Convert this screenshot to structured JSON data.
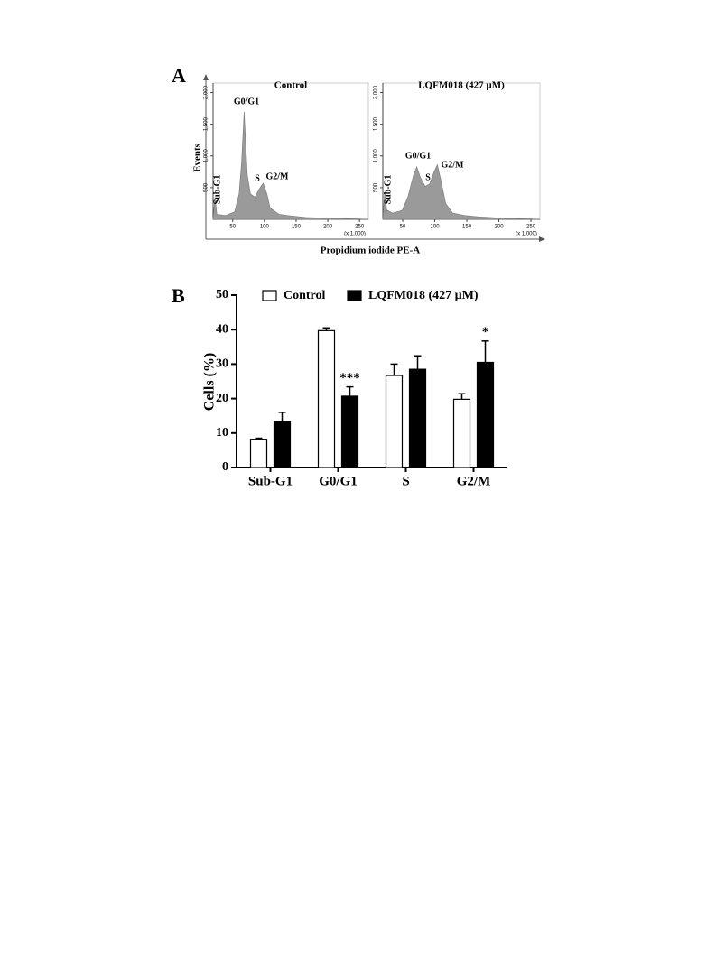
{
  "panel_a": {
    "label": "A",
    "ylabel": "Events",
    "xlabel": "Propidium iodide PE-A"
  },
  "panel_b": {
    "label": "B"
  },
  "chart_data": [
    {
      "type": "histogram-area",
      "title": "Control",
      "color": "#9a9a9a",
      "x_unit": "(x 1,000)",
      "x": [
        19,
        22,
        25,
        39,
        53,
        60,
        64,
        68,
        73,
        78,
        85,
        92,
        98,
        104,
        109,
        123,
        137,
        165,
        208,
        250,
        264
      ],
      "values": [
        0,
        350,
        80,
        60,
        120,
        400,
        900,
        1700,
        700,
        400,
        350,
        480,
        570,
        400,
        180,
        80,
        60,
        30,
        15,
        5,
        0
      ],
      "xlim": [
        19,
        264
      ],
      "xticks": [
        50,
        100,
        150,
        200,
        250
      ],
      "ylim": [
        0,
        2150
      ],
      "yticks": [
        500,
        {
          "value": 1000,
          "label": "1,000"
        },
        {
          "value": 1500,
          "label": "1,500"
        },
        {
          "value": 2000,
          "label": "2,000"
        }
      ],
      "annotations": [
        "Sub-G1",
        "G0/G1",
        "S",
        "G2/M"
      ]
    },
    {
      "type": "histogram-area",
      "title": "LQFM018 (427 µM)",
      "color": "#9a9a9a",
      "x_unit": "(x 1,000)",
      "x": [
        19,
        22,
        25,
        34,
        49,
        58,
        67,
        72,
        78,
        85,
        92,
        99,
        104,
        110,
        117,
        128,
        147,
        168,
        210,
        250,
        264
      ],
      "values": [
        0,
        450,
        150,
        100,
        140,
        350,
        700,
        830,
        650,
        520,
        560,
        750,
        860,
        600,
        250,
        100,
        60,
        40,
        15,
        5,
        0
      ],
      "xlim": [
        19,
        264
      ],
      "xticks": [
        50,
        100,
        150,
        200,
        250
      ],
      "ylim": [
        0,
        2150
      ],
      "yticks": [
        500,
        {
          "value": 1000,
          "label": "1,000"
        },
        {
          "value": 1500,
          "label": "1,500"
        },
        {
          "value": 2000,
          "label": "2,000"
        }
      ],
      "annotations": [
        "Sub-G1",
        "G0/G1",
        "S",
        "G2/M"
      ]
    },
    {
      "type": "bar",
      "ylabel": "Cells (%)",
      "categories": [
        "Sub-G1",
        "G0/G1",
        "S",
        "G2/M"
      ],
      "series": [
        {
          "name": "Control",
          "color": "#ffffff",
          "values": [
            8.2,
            39.7,
            26.7,
            19.8
          ],
          "errors": [
            0.3,
            0.8,
            3.3,
            1.6
          ]
        },
        {
          "name": "LQFM018 (427 µM)",
          "color": "#000000",
          "values": [
            13.3,
            20.7,
            28.5,
            30.5
          ],
          "errors": [
            2.7,
            2.7,
            3.9,
            6.2
          ]
        }
      ],
      "significance": [
        null,
        "***",
        null,
        "*"
      ],
      "ylim": [
        0,
        50
      ],
      "yticks": [
        0,
        10,
        20,
        30,
        40,
        50
      ]
    }
  ]
}
